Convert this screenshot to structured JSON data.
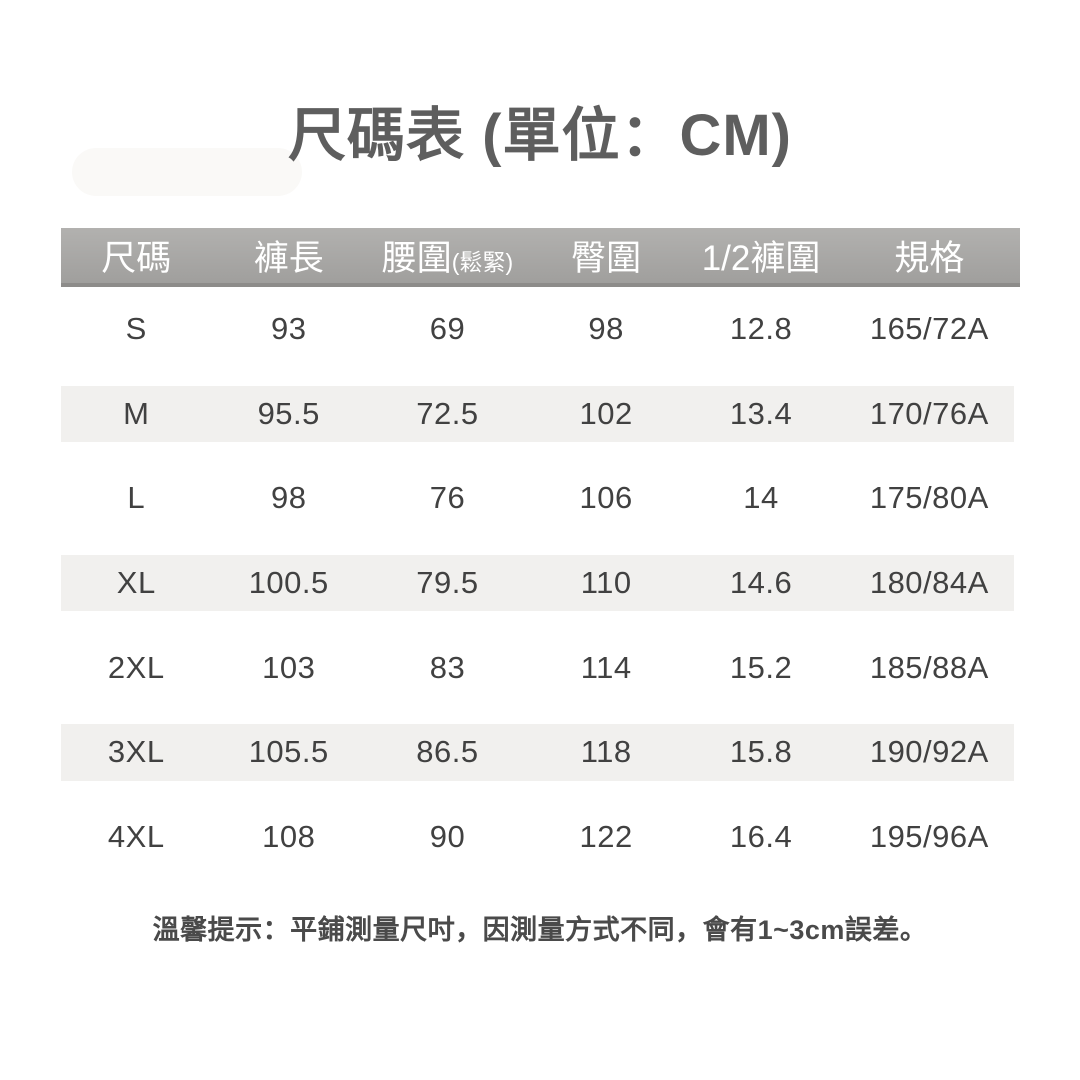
{
  "page": {
    "title": "尺碼表 (單位：CM)",
    "unit": "CM",
    "note": "溫馨提示：平鋪測量尺吋，因測量方式不同，會有1~3cm誤差。"
  },
  "table": {
    "headers": [
      {
        "label": "尺碼",
        "sub": ""
      },
      {
        "label": "褲長",
        "sub": ""
      },
      {
        "label": "腰圍",
        "sub": "(鬆緊)"
      },
      {
        "label": "臀圍",
        "sub": ""
      },
      {
        "label": "1/2褲圍",
        "sub": ""
      },
      {
        "label": "規格",
        "sub": ""
      }
    ],
    "rows": [
      [
        "S",
        "93",
        "69",
        "98",
        "12.8",
        "165/72A"
      ],
      [
        "M",
        "95.5",
        "72.5",
        "102",
        "13.4",
        "170/76A"
      ],
      [
        "L",
        "98",
        "76",
        "106",
        "14",
        "175/80A"
      ],
      [
        "XL",
        "100.5",
        "79.5",
        "110",
        "14.6",
        "180/84A"
      ],
      [
        "2XL",
        "103",
        "83",
        "114",
        "15.2",
        "185/88A"
      ],
      [
        "3XL",
        "105.5",
        "86.5",
        "118",
        "15.8",
        "190/92A"
      ],
      [
        "4XL",
        "108",
        "90",
        "122",
        "16.4",
        "195/96A"
      ]
    ]
  },
  "colors": {
    "header_bg": "#a8a7a5",
    "header_border": "#8d8c8a",
    "header_text": "#ffffff",
    "stripe_bg": "#f1f0ee",
    "body_text": "#414141",
    "title_text": "#5e5e5e",
    "note_text": "#4a4a4a"
  }
}
